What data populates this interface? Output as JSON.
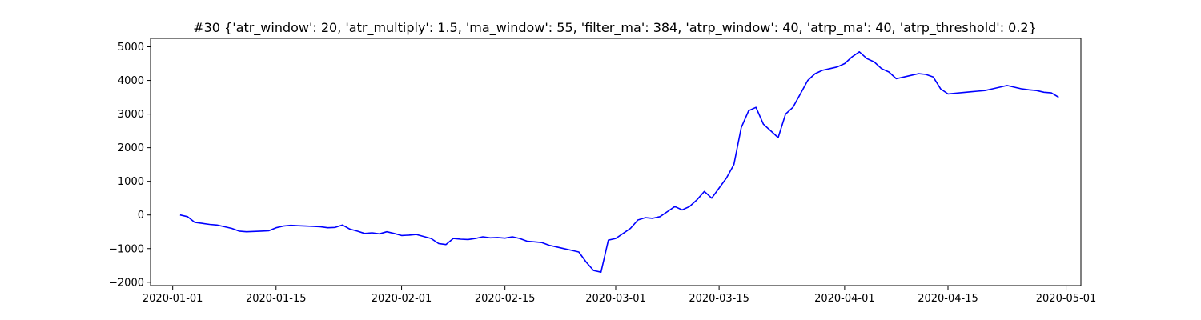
{
  "chart_data": {
    "type": "line",
    "title": "#30 {'atr_window': 20, 'atr_multiply': 1.5, 'ma_window': 55, 'filter_ma': 384, 'atrp_window': 40, 'atrp_ma': 40, 'atrp_threshold': 0.2}",
    "xlabel": "",
    "ylabel": "",
    "xlim": [
      "2019-12-29",
      "2020-05-03"
    ],
    "ylim": [
      -2100,
      5250
    ],
    "x_ticks": [
      "2020-01-01",
      "2020-01-15",
      "2020-02-01",
      "2020-02-15",
      "2020-03-01",
      "2020-03-15",
      "2020-04-01",
      "2020-04-15",
      "2020-05-01"
    ],
    "y_ticks": [
      -2000,
      -1000,
      0,
      1000,
      2000,
      3000,
      4000,
      5000
    ],
    "grid": false,
    "legend": "none",
    "series": [
      {
        "color": "#0000ff",
        "x": [
          "2020-01-02",
          "2020-01-03",
          "2020-01-04",
          "2020-01-05",
          "2020-01-06",
          "2020-01-07",
          "2020-01-08",
          "2020-01-09",
          "2020-01-10",
          "2020-01-11",
          "2020-01-12",
          "2020-01-13",
          "2020-01-14",
          "2020-01-15",
          "2020-01-16",
          "2020-01-17",
          "2020-01-18",
          "2020-01-19",
          "2020-01-20",
          "2020-01-21",
          "2020-01-22",
          "2020-01-23",
          "2020-01-24",
          "2020-01-25",
          "2020-01-26",
          "2020-01-27",
          "2020-01-28",
          "2020-01-29",
          "2020-01-30",
          "2020-01-31",
          "2020-02-01",
          "2020-02-02",
          "2020-02-03",
          "2020-02-04",
          "2020-02-05",
          "2020-02-06",
          "2020-02-07",
          "2020-02-08",
          "2020-02-09",
          "2020-02-10",
          "2020-02-11",
          "2020-02-12",
          "2020-02-13",
          "2020-02-14",
          "2020-02-15",
          "2020-02-16",
          "2020-02-17",
          "2020-02-18",
          "2020-02-19",
          "2020-02-20",
          "2020-02-21",
          "2020-02-22",
          "2020-02-23",
          "2020-02-24",
          "2020-02-25",
          "2020-02-26",
          "2020-02-27",
          "2020-02-28",
          "2020-02-29",
          "2020-03-01",
          "2020-03-02",
          "2020-03-03",
          "2020-03-04",
          "2020-03-05",
          "2020-03-06",
          "2020-03-07",
          "2020-03-08",
          "2020-03-09",
          "2020-03-10",
          "2020-03-11",
          "2020-03-12",
          "2020-03-13",
          "2020-03-14",
          "2020-03-15",
          "2020-03-16",
          "2020-03-17",
          "2020-03-18",
          "2020-03-19",
          "2020-03-20",
          "2020-03-21",
          "2020-03-22",
          "2020-03-23",
          "2020-03-24",
          "2020-03-25",
          "2020-03-26",
          "2020-03-27",
          "2020-03-28",
          "2020-03-29",
          "2020-03-30",
          "2020-03-31",
          "2020-04-01",
          "2020-04-02",
          "2020-04-03",
          "2020-04-04",
          "2020-04-05",
          "2020-04-06",
          "2020-04-07",
          "2020-04-08",
          "2020-04-09",
          "2020-04-10",
          "2020-04-11",
          "2020-04-12",
          "2020-04-13",
          "2020-04-14",
          "2020-04-15",
          "2020-04-16",
          "2020-04-17",
          "2020-04-18",
          "2020-04-19",
          "2020-04-20",
          "2020-04-21",
          "2020-04-22",
          "2020-04-23",
          "2020-04-24",
          "2020-04-25",
          "2020-04-26",
          "2020-04-27",
          "2020-04-28",
          "2020-04-29",
          "2020-04-30"
        ],
        "values": [
          0,
          -50,
          -220,
          -250,
          -280,
          -300,
          -350,
          -400,
          -480,
          -500,
          -490,
          -480,
          -470,
          -380,
          -330,
          -310,
          -320,
          -330,
          -340,
          -350,
          -380,
          -370,
          -300,
          -420,
          -480,
          -550,
          -530,
          -560,
          -500,
          -550,
          -610,
          -600,
          -580,
          -640,
          -700,
          -850,
          -880,
          -700,
          -720,
          -730,
          -700,
          -650,
          -680,
          -670,
          -690,
          -650,
          -700,
          -780,
          -800,
          -820,
          -900,
          -950,
          -1000,
          -1050,
          -1100,
          -1400,
          -1650,
          -1700,
          -750,
          -700,
          -550,
          -400,
          -150,
          -80,
          -100,
          -50,
          100,
          250,
          150,
          250,
          450,
          700,
          500,
          800,
          1100,
          1500,
          2600,
          3100,
          3200,
          2700,
          2500,
          2300,
          3000,
          3200,
          3600,
          4000,
          4200,
          4300,
          4350,
          4400,
          4500,
          4700,
          4850,
          4650,
          4550,
          4350,
          4250,
          4050,
          4100,
          4150,
          4200,
          4180,
          4100,
          3750,
          3600,
          3620,
          3640,
          3660,
          3680,
          3700,
          3750,
          3800,
          3850,
          3800,
          3750,
          3720,
          3700,
          3650,
          3630,
          3500
        ]
      }
    ]
  }
}
